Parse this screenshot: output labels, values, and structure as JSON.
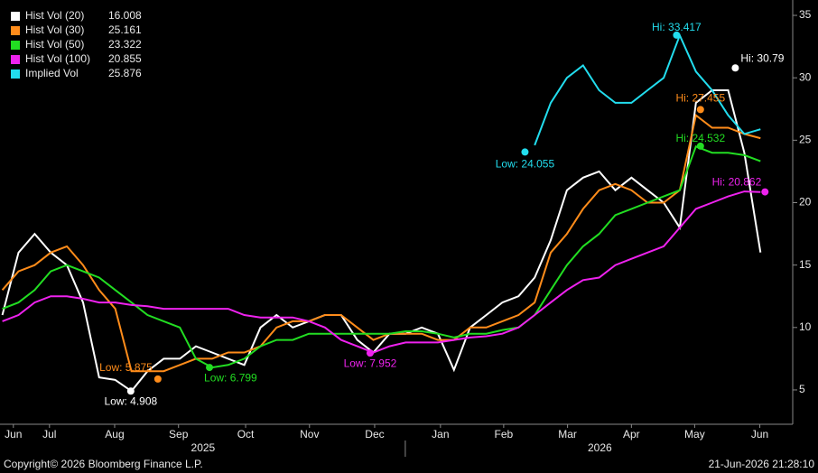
{
  "chart_data": {
    "type": "line",
    "x": [
      0.75,
      1,
      1.25,
      1.5,
      1.75,
      2,
      2.25,
      2.5,
      2.75,
      3,
      3.25,
      3.5,
      3.75,
      4,
      4.25,
      4.5,
      4.75,
      5,
      5.25,
      5.5,
      5.75,
      6,
      6.25,
      6.5,
      6.75,
      7,
      7.25,
      7.5,
      7.75,
      8,
      8.25,
      8.5,
      8.75,
      9,
      9.25,
      9.5,
      9.75,
      10,
      10.25,
      10.5,
      10.75,
      11,
      11.25,
      11.5,
      11.75,
      12,
      12.25,
      12.5
    ],
    "xlim": [
      0.713,
      13.0
    ],
    "xticks": [
      {
        "value": 0.92,
        "label": "Jun"
      },
      {
        "value": 1.48,
        "label": "Jul"
      },
      {
        "value": 2.49,
        "label": "Aug"
      },
      {
        "value": 3.48,
        "label": "Sep"
      },
      {
        "value": 4.52,
        "label": "Oct"
      },
      {
        "value": 5.51,
        "label": "Nov"
      },
      {
        "value": 6.52,
        "label": "Dec"
      },
      {
        "value": 7.54,
        "label": "Jan"
      },
      {
        "value": 8.52,
        "label": "Feb"
      },
      {
        "value": 9.51,
        "label": "Mar"
      },
      {
        "value": 10.5,
        "label": "Apr"
      },
      {
        "value": 11.48,
        "label": "May"
      },
      {
        "value": 12.49,
        "label": "Jun"
      }
    ],
    "x_groups": [
      {
        "value": 3.86,
        "label": "2025"
      },
      {
        "value": 10.01,
        "label": "2026"
      }
    ],
    "ylim": [
      2.25,
      35.87
    ],
    "yticks": [
      5,
      10,
      15,
      20,
      25,
      30,
      35
    ],
    "series": [
      {
        "name": "Hist Vol (20)",
        "color": "#ffffff",
        "values": [
          11,
          16,
          17.5,
          16,
          15,
          12,
          6,
          5.8,
          4.9,
          6.5,
          7.5,
          7.5,
          8.5,
          8,
          7.5,
          7,
          10,
          11,
          10,
          10.5,
          11,
          11,
          9,
          8,
          9.5,
          9.5,
          10,
          9.5,
          6.6,
          10,
          11,
          12,
          12.5,
          14,
          17,
          21,
          22,
          22.5,
          21,
          22,
          21,
          20,
          18,
          28,
          29,
          29,
          24,
          16.008
        ]
      },
      {
        "name": "Hist Vol (30)",
        "color": "#ff8c1a",
        "values": [
          13,
          14.5,
          15,
          16,
          16.5,
          15,
          13,
          11.5,
          6.5,
          6.5,
          6.5,
          7,
          7.5,
          7.5,
          8,
          8,
          8.5,
          10,
          10.5,
          10.5,
          11,
          11,
          10,
          9,
          9.5,
          9.5,
          9.5,
          9,
          9,
          10,
          10,
          10.5,
          11,
          12,
          16,
          17.5,
          19.5,
          21,
          21.5,
          21,
          20,
          20,
          21,
          27,
          26,
          26,
          25.5,
          25.161
        ]
      },
      {
        "name": "Hist Vol (50)",
        "color": "#22dd22",
        "values": [
          11.5,
          12,
          13,
          14.5,
          15,
          14.5,
          14,
          13,
          12,
          11,
          10.5,
          10,
          7.5,
          6.8,
          7,
          7.5,
          8.5,
          9,
          9,
          9.5,
          9.5,
          9.5,
          9.5,
          9.5,
          9.5,
          9.7,
          9.7,
          9.5,
          9.2,
          9.5,
          9.5,
          9.8,
          10,
          11,
          13,
          15,
          16.5,
          17.5,
          19,
          19.5,
          20,
          20.5,
          21,
          24.5,
          24,
          24,
          23.8,
          23.322
        ]
      },
      {
        "name": "Hist Vol (100)",
        "color": "#ee22ee",
        "values": [
          10.5,
          11,
          12,
          12.5,
          12.5,
          12.3,
          12,
          12,
          11.8,
          11.7,
          11.5,
          11.5,
          11.5,
          11.5,
          11.5,
          11,
          10.8,
          10.8,
          10.8,
          10.5,
          10,
          9,
          8.5,
          8,
          8.5,
          8.8,
          8.8,
          8.8,
          9,
          9.2,
          9.3,
          9.5,
          10,
          11,
          12,
          13,
          13.8,
          14,
          15,
          15.5,
          16,
          16.5,
          18,
          19.5,
          20,
          20.5,
          20.9,
          20.855
        ]
      },
      {
        "name": "Implied Vol",
        "color": "#22ddee",
        "values": [
          null,
          null,
          null,
          null,
          null,
          null,
          null,
          null,
          null,
          null,
          null,
          null,
          null,
          null,
          null,
          null,
          null,
          null,
          null,
          null,
          null,
          null,
          null,
          null,
          null,
          null,
          null,
          null,
          null,
          null,
          null,
          null,
          null,
          24.6,
          28,
          30,
          31,
          29,
          28,
          28,
          29,
          30,
          33.4,
          30.5,
          29,
          27,
          25.5,
          25.876
        ]
      }
    ],
    "annotations": [
      {
        "text": "Hi: 33.417",
        "x": 11.2,
        "y": 33.417,
        "color": "#22ddee"
      },
      {
        "text": "Low: 24.055",
        "x": 8.85,
        "y": 24.055,
        "color": "#22ddee"
      },
      {
        "text": "Hi: 30.79",
        "x": 12.11,
        "y": 30.79,
        "color": "#ffffff"
      },
      {
        "text": "Hi: 27.455",
        "x": 11.57,
        "y": 27.455,
        "color": "#ff8c1a"
      },
      {
        "text": "Hi: 24.532",
        "x": 11.57,
        "y": 24.532,
        "color": "#22dd22"
      },
      {
        "text": "Hi: 20.862",
        "x": 12.57,
        "y": 20.862,
        "color": "#ee22ee"
      },
      {
        "text": "Low: 5.875",
        "x": 3.16,
        "y": 5.875,
        "color": "#ff8c1a"
      },
      {
        "text": "Low: 4.908",
        "x": 2.74,
        "y": 4.908,
        "color": "#ffffff"
      },
      {
        "text": "Low: 6.799",
        "x": 3.96,
        "y": 6.799,
        "color": "#22dd22"
      },
      {
        "text": "Low: 7.952",
        "x": 6.45,
        "y": 7.952,
        "color": "#ee22ee"
      }
    ],
    "footer": {
      "left": "Copyright© 2026 Bloomberg Finance L.P.",
      "right": "21-Jun-2026 21:28:10"
    }
  }
}
